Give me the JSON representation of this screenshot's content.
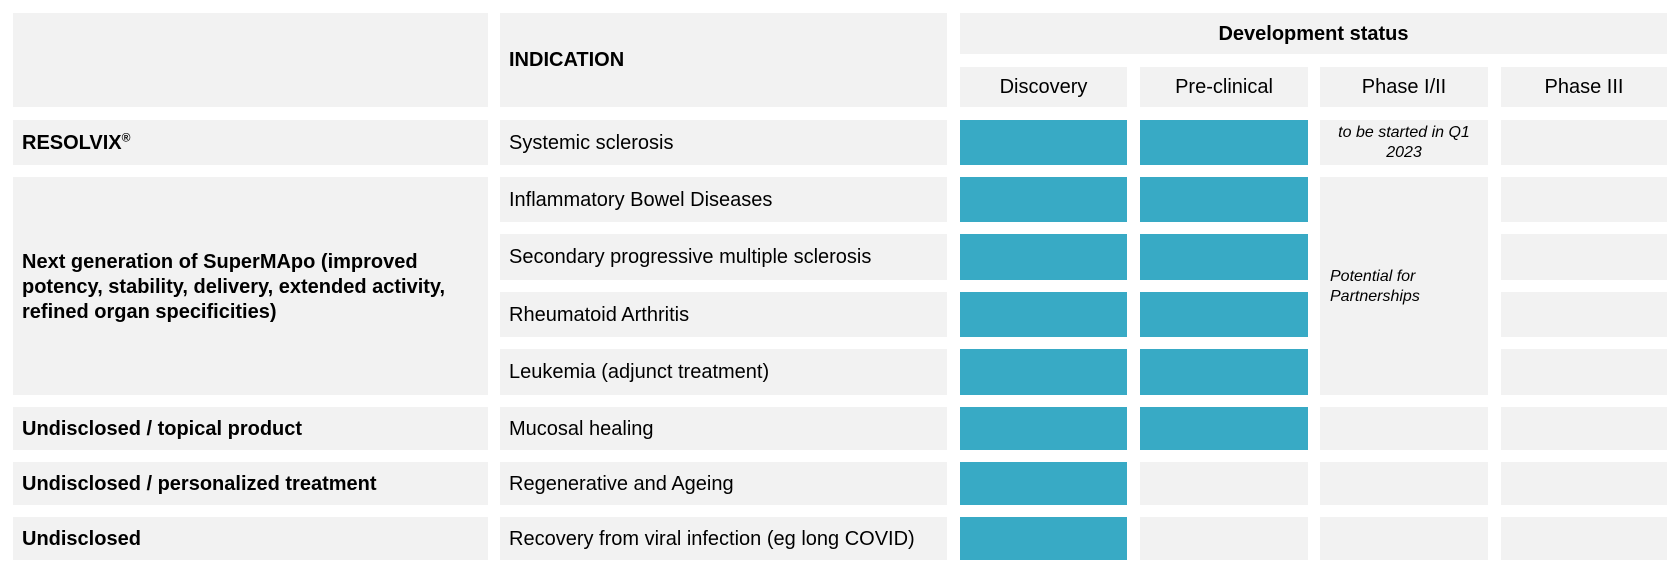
{
  "header": {
    "indication_label": "INDICATION",
    "status_label": "Development status",
    "phases": [
      "Discovery",
      "Pre-clinical",
      "Phase I/II",
      "Phase III"
    ]
  },
  "products": [
    {
      "name": "RESOLVIX",
      "mark": "®"
    },
    {
      "name": "Next generation of SuperMApo (improved potency, stability, delivery, extended activity, refined organ specificities)"
    },
    {
      "name": "Undisclosed / topical product"
    },
    {
      "name": "Undisclosed / personalized treatment"
    },
    {
      "name": "Undisclosed"
    }
  ],
  "rows": [
    {
      "indication": "Systemic sclerosis",
      "progress": [
        "Discovery",
        "Pre-clinical"
      ]
    },
    {
      "indication": "Inflammatory Bowel Diseases",
      "progress": [
        "Discovery",
        "Pre-clinical"
      ]
    },
    {
      "indication": "Secondary progressive multiple sclerosis",
      "progress": [
        "Discovery",
        "Pre-clinical"
      ]
    },
    {
      "indication": "Rheumatoid Arthritis",
      "progress": [
        "Discovery",
        "Pre-clinical"
      ]
    },
    {
      "indication": "Leukemia (adjunct treatment)",
      "progress": [
        "Discovery",
        "Pre-clinical"
      ]
    },
    {
      "indication": "Mucosal healing",
      "progress": [
        "Discovery",
        "Pre-clinical"
      ]
    },
    {
      "indication": "Regenerative and Ageing",
      "progress": [
        "Discovery"
      ]
    },
    {
      "indication": "Recovery from viral infection (eg long COVID)",
      "progress": [
        "Discovery"
      ]
    }
  ],
  "notes": {
    "phase12_resolvix": "to be started in Q1 2023",
    "partnerships": "Potential for Partnerships"
  },
  "colors": {
    "bar": "#38aac5",
    "cell": "#f2f2f2"
  }
}
